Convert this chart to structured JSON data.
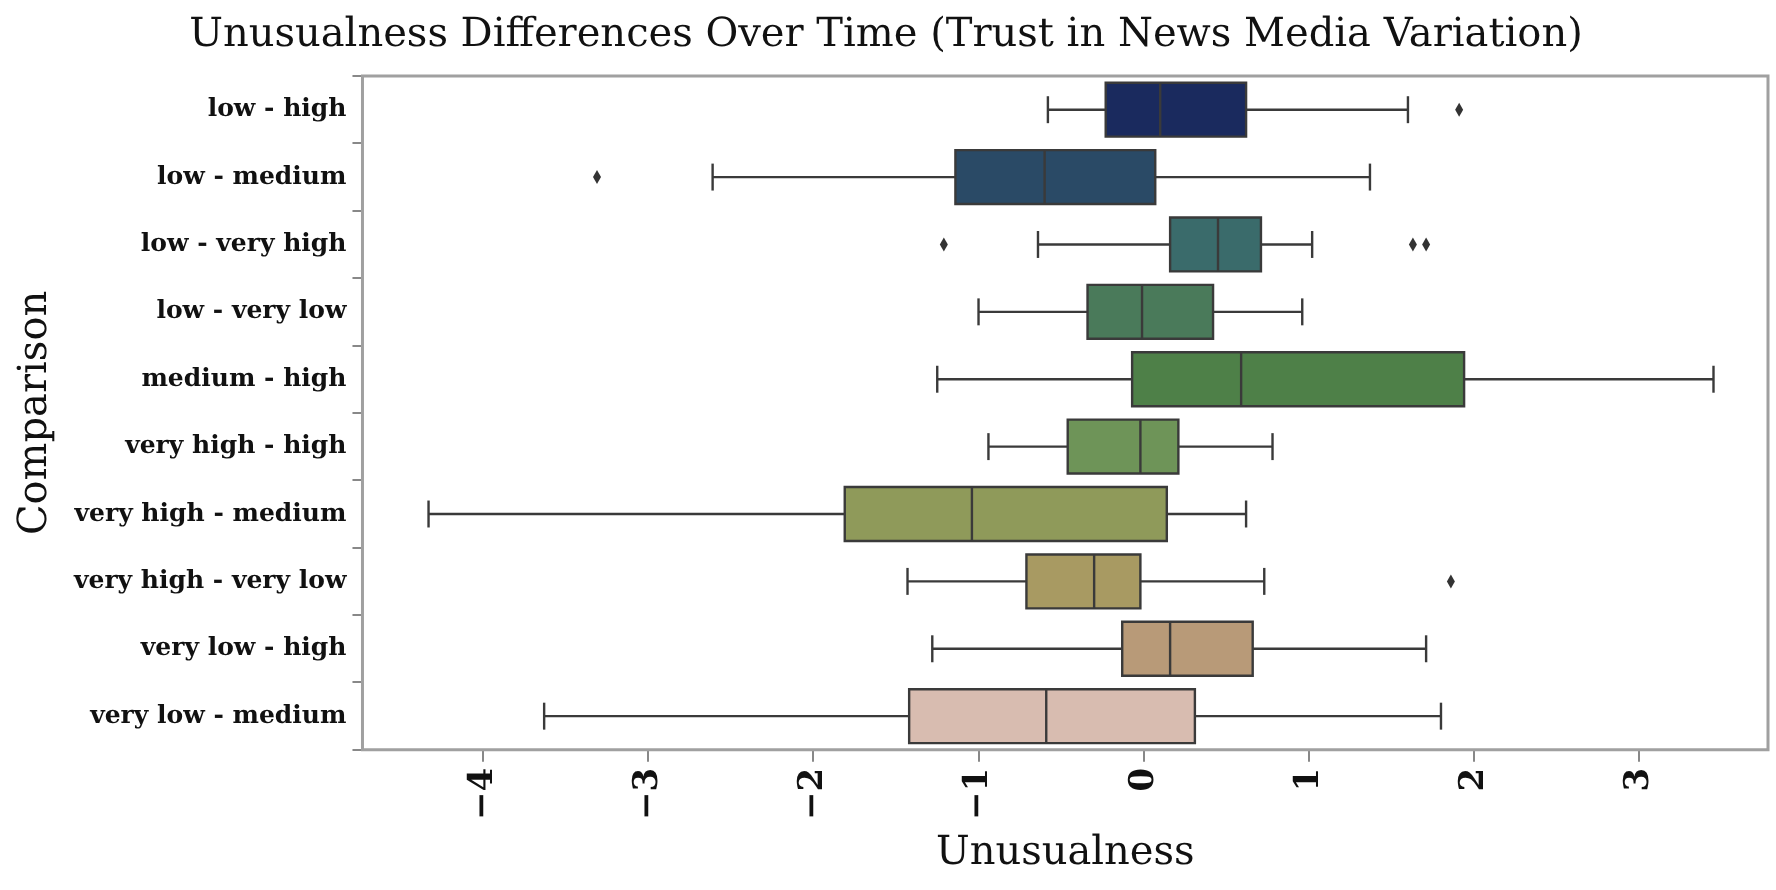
{
  "chart_data": {
    "type": "box",
    "orientation": "horizontal",
    "title": "Unusualness Differences Over Time (Trust in News Media Variation)",
    "xlabel": "Unusualness",
    "ylabel": "Comparison",
    "categories": [
      "low - high",
      "low - medium",
      "low - very high",
      "low - very low",
      "medium - high",
      "very high - high",
      "very high - medium",
      "very high - very low",
      "very low - high",
      "very low - medium"
    ],
    "colors": [
      "#1a2a5e",
      "#2a4a66",
      "#3a6b6b",
      "#4a7a5a",
      "#4e8048",
      "#6e9458",
      "#8f9a5a",
      "#a89a62",
      "#b89a78",
      "#d8bcb0"
    ],
    "boxes": [
      {
        "low": -0.58,
        "q1": -0.23,
        "median": 0.1,
        "q3": 0.62,
        "high": 1.6,
        "outliers": [
          1.91
        ]
      },
      {
        "low": -2.61,
        "q1": -1.14,
        "median": -0.6,
        "q3": 0.07,
        "high": 1.37,
        "outliers": [
          -3.31
        ]
      },
      {
        "low": -0.64,
        "q1": 0.16,
        "median": 0.45,
        "q3": 0.71,
        "high": 1.02,
        "outliers": [
          -1.21,
          1.63,
          1.71
        ]
      },
      {
        "low": -1.0,
        "q1": -0.34,
        "median": -0.01,
        "q3": 0.42,
        "high": 0.96
      },
      {
        "low": -1.25,
        "q1": -0.07,
        "median": 0.59,
        "q3": 1.94,
        "high": 3.45
      },
      {
        "low": -0.94,
        "q1": -0.46,
        "median": -0.02,
        "q3": 0.21,
        "high": 0.78
      },
      {
        "low": -4.33,
        "q1": -1.81,
        "median": -1.04,
        "q3": 0.14,
        "high": 0.62
      },
      {
        "low": -1.43,
        "q1": -0.71,
        "median": -0.3,
        "q3": -0.02,
        "high": 0.73,
        "outliers": [
          1.86
        ]
      },
      {
        "low": -1.28,
        "q1": -0.13,
        "median": 0.16,
        "q3": 0.66,
        "high": 1.71
      },
      {
        "low": -3.63,
        "q1": -1.42,
        "median": -0.59,
        "q3": 0.31,
        "high": 1.8
      }
    ],
    "xlim": [
      -4.73,
      3.78
    ],
    "xticks": [
      -4,
      -3,
      -2,
      -1,
      0,
      1,
      2,
      3
    ],
    "grid": false,
    "legend": false
  }
}
